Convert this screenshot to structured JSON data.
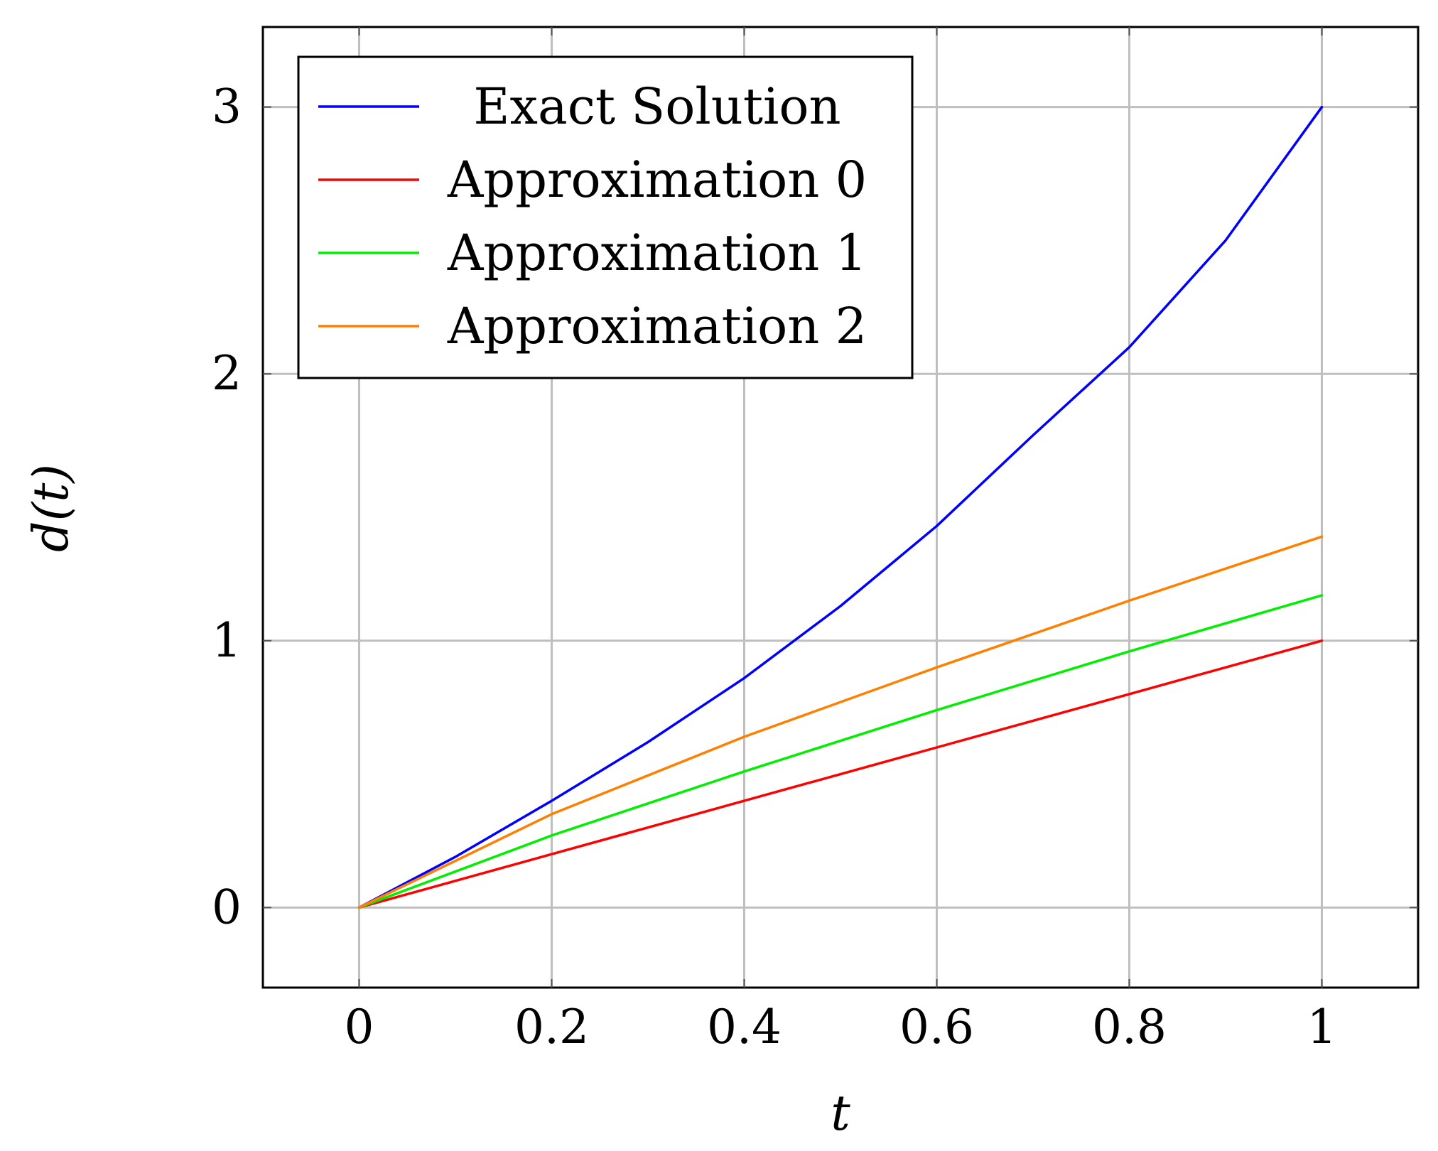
{
  "chart_data": {
    "type": "line",
    "xlabel": "t",
    "ylabel": "d(t)",
    "xlim": [
      -0.1,
      1.1
    ],
    "ylim": [
      -0.3,
      3.3
    ],
    "xticks": [
      0,
      0.2,
      0.4,
      0.6,
      0.8,
      1
    ],
    "yticks": [
      0,
      1,
      2,
      3
    ],
    "xtick_labels": [
      "0",
      "0.2",
      "0.4",
      "0.6",
      "0.8",
      "1"
    ],
    "ytick_labels": [
      "0",
      "1",
      "2",
      "3"
    ],
    "grid": true,
    "legend_position": "top-left",
    "series": [
      {
        "name": "Exact Solution",
        "color": "#0000ff",
        "x": [
          0,
          0.1,
          0.2,
          0.3,
          0.4,
          0.5,
          0.6,
          0.7,
          0.8,
          0.9,
          1.0
        ],
        "y": [
          0,
          0.19,
          0.4,
          0.62,
          0.86,
          1.13,
          1.43,
          1.77,
          2.1,
          2.5,
          3.0
        ]
      },
      {
        "name": "Approximation 0",
        "color": "#ff0000",
        "x": [
          0,
          0.2,
          0.4,
          0.6,
          0.8,
          1.0
        ],
        "y": [
          0,
          0.2,
          0.4,
          0.6,
          0.8,
          1.0
        ]
      },
      {
        "name": "Approximation 1",
        "color": "#00ee00",
        "x": [
          0,
          0.2,
          0.4,
          0.6,
          0.8,
          1.0
        ],
        "y": [
          0,
          0.27,
          0.51,
          0.74,
          0.96,
          1.17
        ]
      },
      {
        "name": "Approximation 2",
        "color": "#ff8000",
        "x": [
          0,
          0.2,
          0.4,
          0.6,
          0.8,
          1.0
        ],
        "y": [
          0,
          0.35,
          0.64,
          0.9,
          1.15,
          1.39
        ]
      }
    ]
  }
}
